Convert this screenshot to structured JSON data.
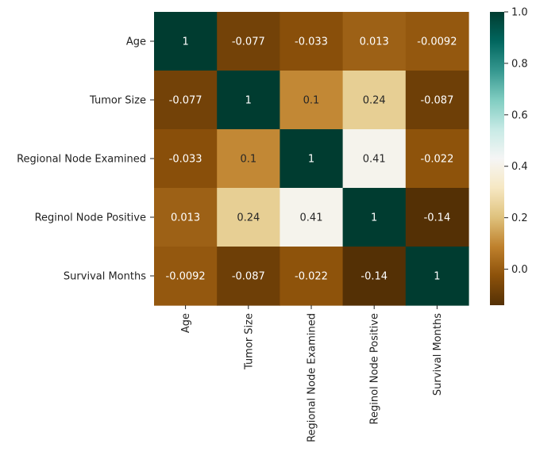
{
  "chart_data": {
    "type": "heatmap",
    "title": "",
    "xlabel": "",
    "ylabel": "",
    "rows": [
      "Age",
      "Tumor Size",
      "Regional Node Examined",
      "Reginol Node Positive",
      "Survival Months"
    ],
    "columns": [
      "Age",
      "Tumor Size",
      "Regional Node Examined",
      "Reginol Node Positive",
      "Survival Months"
    ],
    "values": [
      [
        1,
        -0.077,
        -0.033,
        0.013,
        -0.0092
      ],
      [
        -0.077,
        1,
        0.1,
        0.24,
        -0.087
      ],
      [
        -0.033,
        0.1,
        1,
        0.41,
        -0.022
      ],
      [
        0.013,
        0.24,
        0.41,
        1,
        -0.14
      ],
      [
        -0.0092,
        -0.087,
        -0.022,
        -0.14,
        1
      ]
    ],
    "annotations": [
      [
        "1",
        "-0.077",
        "-0.033",
        "0.013",
        "-0.0092"
      ],
      [
        "-0.077",
        "1",
        "0.1",
        "0.24",
        "-0.087"
      ],
      [
        "-0.033",
        "0.1",
        "1",
        "0.41",
        "-0.022"
      ],
      [
        "0.013",
        "0.24",
        "0.41",
        "1",
        "-0.14"
      ],
      [
        "-0.0092",
        "-0.087",
        "-0.022",
        "-0.14",
        "1"
      ]
    ],
    "colormap": "BrBG",
    "vmin": -0.14,
    "vmax": 1,
    "colorbar": {
      "ticks": [
        0.0,
        0.2,
        0.4,
        0.6,
        0.8,
        1.0
      ],
      "tick_labels": [
        "0.0",
        "0.2",
        "0.4",
        "0.6",
        "0.8",
        "1.0"
      ]
    }
  }
}
